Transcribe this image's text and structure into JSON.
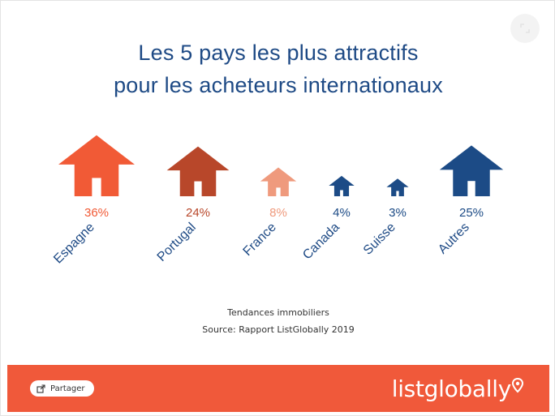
{
  "title": {
    "line1": "Les 5 pays les plus attractifs",
    "line2": "pour les acheteurs internationaux"
  },
  "chart_data": {
    "type": "pictogram-bar",
    "title": "Les 5 pays les plus attractifs pour les acheteurs internationaux",
    "unit": "%",
    "categories": [
      "Espagne",
      "Portugal",
      "France",
      "Canada",
      "Suisse",
      "Autres"
    ],
    "values": [
      36,
      24,
      8,
      4,
      3,
      25
    ],
    "value_labels": [
      "36%",
      "24%",
      "8%",
      "4%",
      "3%",
      "25%"
    ],
    "colors": [
      "#f15a36",
      "#b8472a",
      "#ef9a7d",
      "#1c4b86",
      "#1c4b86",
      "#1c4b86"
    ],
    "label_colors": [
      "#f15a36",
      "#b8472a",
      "#ef9a7d",
      "#1c4b86",
      "#1c4b86",
      "#1c4b86"
    ],
    "axis_label_color": "#1e4a85",
    "icon": "house-icon"
  },
  "source": {
    "line1": "Tendances immobiliers",
    "line2": "Source: Rapport ListGlobally 2019"
  },
  "footer": {
    "share_label": "Partager",
    "brand": "listglobally",
    "background": "#f0593a"
  }
}
